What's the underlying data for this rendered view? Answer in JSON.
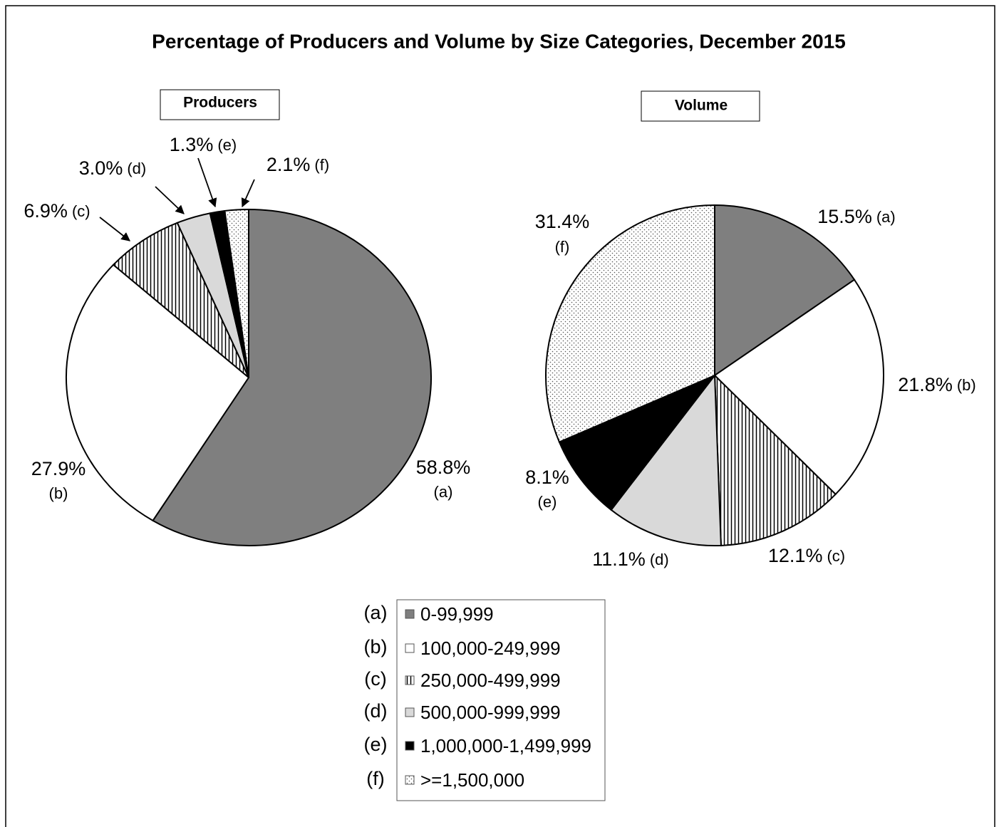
{
  "title": "Percentage of Producers and Volume by Size Categories, December 2015",
  "letters": [
    "(a)",
    "(b)",
    "(c)",
    "(d)",
    "(e)",
    "(f)"
  ],
  "categories": [
    "0-99,999",
    "100,000-249,999",
    "250,000-499,999",
    "500,000-999,999",
    "1,000,000-1,499,999",
    ">=1,500,000"
  ],
  "fills": [
    "#7f7f7f",
    "#ffffff",
    "vstripe",
    "#d9d9d9",
    "#000000",
    "dots"
  ],
  "chart_data": [
    {
      "type": "pie",
      "title": "Producers",
      "values": [
        58.8,
        27.9,
        6.9,
        3.0,
        1.3,
        2.1
      ],
      "value_labels": [
        "58.8%",
        "27.9%",
        "6.9%",
        "3.0%",
        "1.3%",
        "2.1%"
      ]
    },
    {
      "type": "pie",
      "title": "Volume",
      "values": [
        15.5,
        21.8,
        12.1,
        11.1,
        8.1,
        31.4
      ],
      "value_labels": [
        "15.5%",
        "21.8%",
        "12.1%",
        "11.1%",
        "8.1%",
        "31.4%"
      ]
    }
  ]
}
